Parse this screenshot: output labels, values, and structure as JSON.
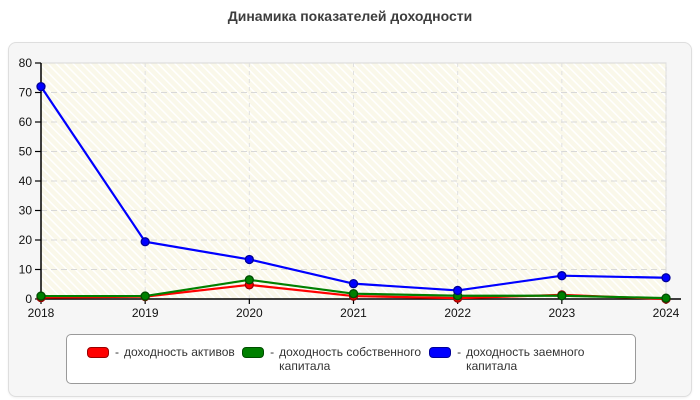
{
  "title": "Динамика показателей доходности",
  "chart_data": {
    "type": "line",
    "x": [
      "2018",
      "2019",
      "2020",
      "2021",
      "2022",
      "2023",
      "2024"
    ],
    "series": [
      {
        "name": "доходность активов",
        "color": "#ff0000",
        "marker_border": "#990000",
        "values": [
          0.5,
          0.8,
          4.8,
          1.0,
          0.3,
          1.4,
          0.0
        ]
      },
      {
        "name": "доходность собственного капитала",
        "color": "#008000",
        "marker_border": "#004d00",
        "values": [
          1.0,
          1.0,
          6.5,
          1.8,
          1.1,
          1.1,
          0.3
        ]
      },
      {
        "name": "доходность заемного капитала",
        "color": "#0000ff",
        "marker_border": "#000099",
        "values": [
          72.0,
          19.4,
          13.4,
          5.2,
          2.9,
          7.9,
          7.2
        ]
      }
    ],
    "title": "Динамика показателей доходности",
    "xlabel": "",
    "ylabel": "",
    "ylim": [
      0,
      80
    ],
    "yticks": [
      0,
      10,
      20,
      30,
      40,
      50,
      60,
      70,
      80
    ],
    "grid": true,
    "grid_style": "dashed",
    "plot_background": "#faf8ea",
    "plot_hatch": "diagonal-white",
    "legend_position": "bottom"
  },
  "legend": {
    "dash": "-",
    "items": [
      {
        "label": "доходность активов"
      },
      {
        "label": "доходность собственного капитала"
      },
      {
        "label": "доходность заемного капитала"
      }
    ]
  }
}
